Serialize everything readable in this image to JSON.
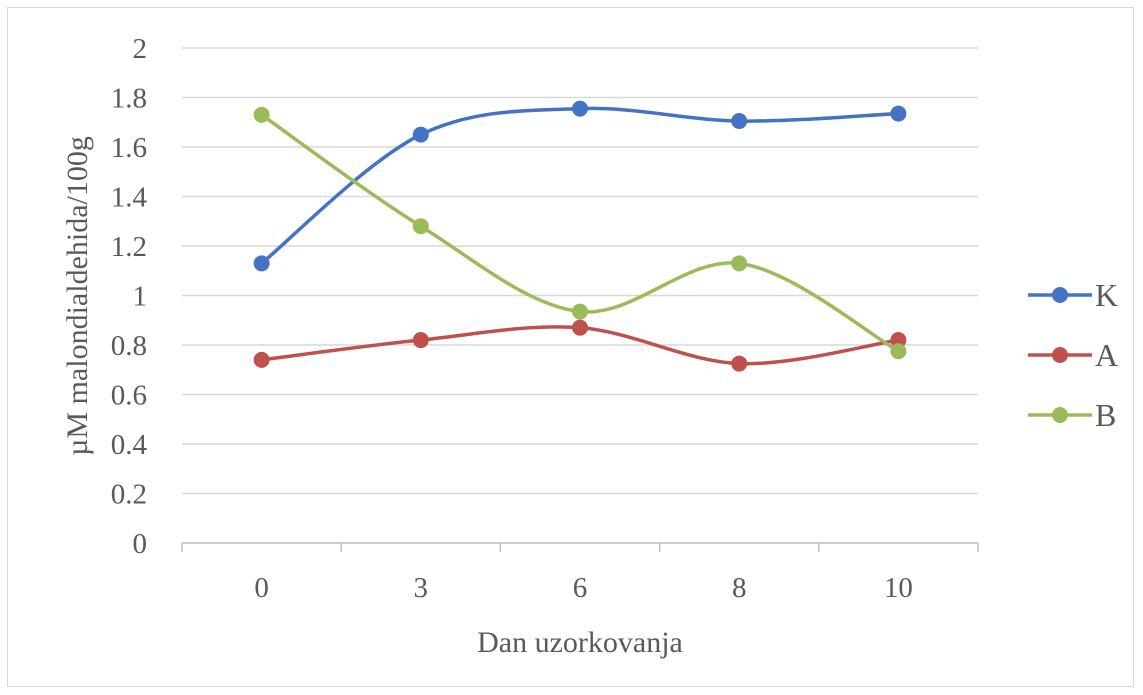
{
  "chart_data": {
    "type": "line",
    "title": "",
    "xlabel": "Dan uzorkovanja",
    "ylabel": "µM malondialdehida/100g",
    "categories": [
      "0",
      "3",
      "6",
      "8",
      "10"
    ],
    "ylim": [
      0,
      2
    ],
    "yticks": [
      0,
      0.2,
      0.4,
      0.6,
      0.8,
      1,
      1.2,
      1.4,
      1.6,
      1.8,
      2
    ],
    "ytick_labels": [
      "0",
      "0.2",
      "0.4",
      "0.6",
      "0.8",
      "1",
      "1.2",
      "1.4",
      "1.6",
      "1.8",
      "2"
    ],
    "grid": true,
    "smooth": true,
    "legend_position": "right",
    "series": [
      {
        "name": "K",
        "color": "#4472c4",
        "values": [
          1.13,
          1.65,
          1.755,
          1.705,
          1.735
        ]
      },
      {
        "name": "A",
        "color": "#c0504d",
        "values": [
          0.74,
          0.82,
          0.87,
          0.725,
          0.82
        ]
      },
      {
        "name": "B",
        "color": "#9bbb59",
        "values": [
          1.73,
          1.28,
          0.935,
          1.13,
          0.775
        ]
      }
    ]
  }
}
